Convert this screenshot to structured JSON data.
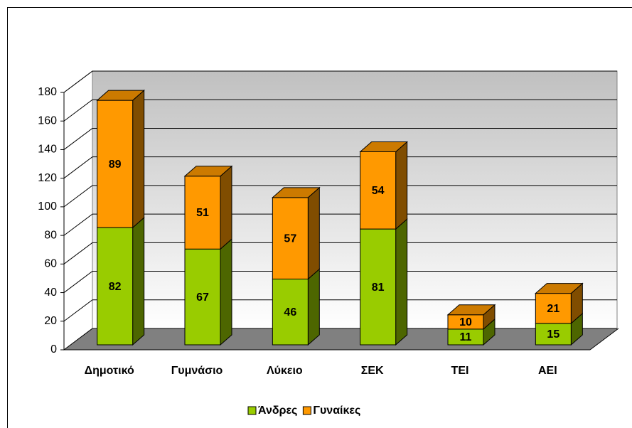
{
  "chart_data": {
    "type": "bar3d_stacked",
    "categories": [
      "Δημοτικό",
      "Γυμνάσιο",
      "Λύκειο",
      "ΣΕΚ",
      "ΤΕΙ",
      "ΑΕΙ"
    ],
    "series": [
      {
        "name": "Άνδρες",
        "color": "#99cc00",
        "values": [
          82,
          67,
          46,
          81,
          11,
          15
        ]
      },
      {
        "name": "Γυναίκες",
        "color": "#ff9900",
        "values": [
          89,
          51,
          57,
          54,
          10,
          21
        ]
      }
    ],
    "ylim": [
      0,
      180
    ],
    "yticks": [
      0,
      20,
      40,
      60,
      80,
      100,
      120,
      140,
      160,
      180
    ],
    "grid": true,
    "legend": "bottom"
  }
}
